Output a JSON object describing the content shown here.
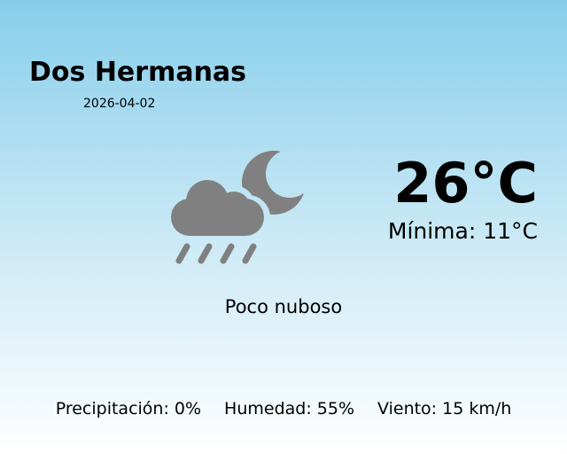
{
  "location": {
    "city": "Dos Hermanas",
    "date": "2026-04-02"
  },
  "current": {
    "temperature": "26°C",
    "minimum": "Mínima: 11°C",
    "condition": "Poco nuboso",
    "icon": "cloud-rain-moon-icon",
    "icon_color": "#808080"
  },
  "details": {
    "precipitation": "Precipitación: 0%",
    "humidity": "Humedad: 55%",
    "wind": "Viento: 15 km/h"
  }
}
